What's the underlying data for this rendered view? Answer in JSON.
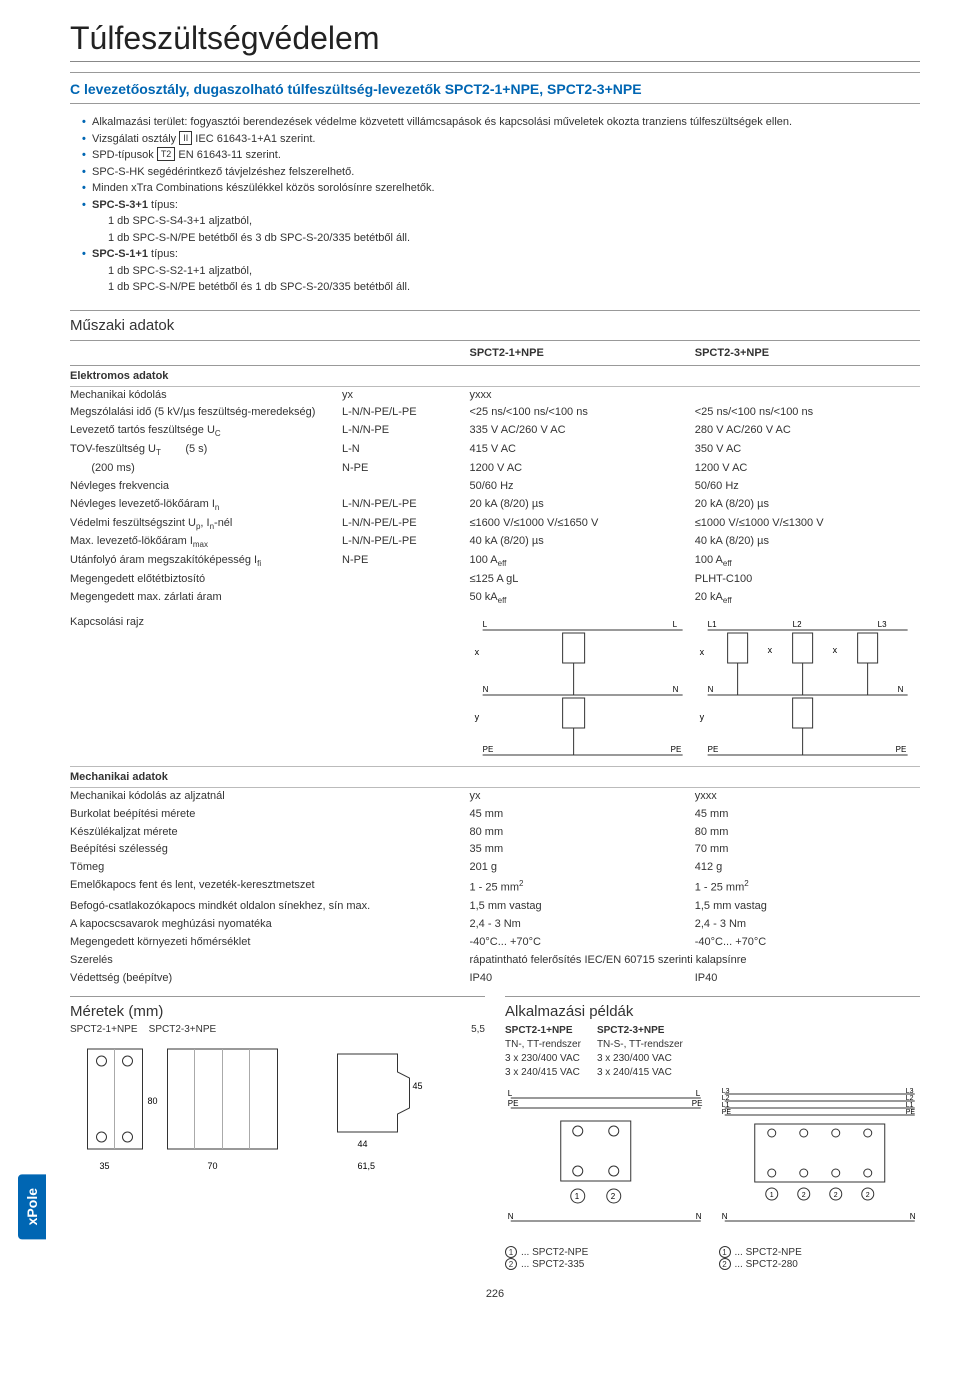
{
  "page": {
    "title": "Túlfeszültségvédelem",
    "number": "226",
    "sidebar": "xPole"
  },
  "product": {
    "heading": "C levezetőosztály, dugaszolható túlfeszültség-levezetők SPCT2-1+NPE, SPCT2-3+NPE"
  },
  "bullets": [
    {
      "text": "Alkalmazási terület: fogyasztói berendezések védelme közvetett villámcsapások és kapcsolási műveletek okozta tranziens túlfeszültségek ellen."
    },
    {
      "text": "Vizsgálati osztály",
      "box": "II",
      "suffix": "IEC 61643-1+A1 szerint."
    },
    {
      "text": "SPD-típusok",
      "box": "T2",
      "suffix": "EN 61643-11 szerint."
    },
    {
      "text": "SPC-S-HK segédérintkező távjelzéshez felszerelhető."
    },
    {
      "text": "Minden xTra Combinations készülékkel közös sorolósínre szerelhetők."
    },
    {
      "boldlead": "SPC-S-3+1",
      "text": "típus:"
    },
    {
      "sub": true,
      "text": "1 db SPC-S-S4-3+1 aljzatból,"
    },
    {
      "sub": true,
      "text": "1 db SPC-S-N/PE betétből és 3 db SPC-S-20/335 betétből áll."
    },
    {
      "boldlead": "SPC-S-1+1",
      "text": "típus:"
    },
    {
      "sub": true,
      "text": "1 db SPC-S-S2-1+1 aljzatból,"
    },
    {
      "sub": true,
      "text": "1 db SPC-S-N/PE betétből és 1 db SPC-S-20/335 betétből áll."
    }
  ],
  "tech": {
    "title": "Műszaki adatok",
    "columns": [
      "",
      "SPCT2-1+NPE",
      "SPCT2-3+NPE"
    ],
    "elec_heading": "Elektromos adatok",
    "rows": [
      {
        "label": "Mechanikai kódolás",
        "cond": "",
        "cond2": "yx",
        "v1": "yxxx",
        "v2": "",
        "spanmode": "coded"
      },
      {
        "label": "Megszólalási idő (5 kV/µs feszültség-meredekség)",
        "cond": "L-N/N-PE/L-PE",
        "v1": "<25 ns/<100 ns/<100 ns",
        "v2": "<25 ns/<100 ns/<100 ns"
      },
      {
        "label": "Levezető tartós feszültsége U",
        "sub": "C",
        "cond": "L-N/N-PE",
        "v1": "335 V AC/260 V AC",
        "v2": "280 V AC/260 V AC"
      },
      {
        "label": "TOV-feszültség U",
        "sub": "T",
        "extra": "(5 s)",
        "cond": "L-N",
        "v1": "415 V AC",
        "v2": "350 V AC"
      },
      {
        "label": "",
        "extra": "(200 ms)",
        "cond": "N-PE",
        "v1": "1200 V AC",
        "v2": "1200 V AC"
      },
      {
        "label": "Névleges frekvencia",
        "cond": "",
        "v1": "50/60 Hz",
        "v2": "50/60 Hz"
      },
      {
        "label": "Névleges levezető-lökőáram I",
        "sub": "n",
        "cond": "L-N/N-PE/L-PE",
        "v1": "20 kA (8/20) µs",
        "v2": "20 kA (8/20) µs"
      },
      {
        "label": "Védelmi feszültségszint U",
        "sub": "p",
        "extra2": ", I",
        "sub2": "n",
        "extra3": "-nél",
        "cond": "L-N/N-PE/L-PE",
        "v1": "≤1600 V/≤1000 V/≤1650 V",
        "v2": "≤1000 V/≤1000 V/≤1300 V"
      },
      {
        "label": "Max. levezető-lökőáram I",
        "sub": "max",
        "cond": "L-N/N-PE/L-PE",
        "v1": "40 kA (8/20) µs",
        "v2": "40 kA (8/20) µs"
      },
      {
        "label": "Utánfolyó áram megszakítóképesség I",
        "sub": "fi",
        "cond": "N-PE",
        "v1": "100 A",
        "v1sub": "eff",
        "v2": "100 A",
        "v2sub": "eff"
      },
      {
        "label": "Megengedett előtétbiztosító",
        "cond": "",
        "v1": "≤125 A gL",
        "v2": "PLHT-C100"
      },
      {
        "label": "Megengedett max. zárlati áram",
        "cond": "",
        "v1": "50 kA",
        "v1sub": "eff",
        "v2": "20 kA",
        "v2sub": "eff"
      }
    ],
    "circuit_label": "Kapcsolási rajz",
    "circuit_terms": {
      "L": "L",
      "L1": "L1",
      "L2": "L2",
      "L3": "L3",
      "N": "N",
      "PE": "PE",
      "x": "x",
      "y": "y"
    },
    "mech_heading": "Mechanikai adatok",
    "mech_rows": [
      {
        "label": "Mechanikai kódolás az aljzatnál",
        "v1": "yx",
        "v2": "yxxx"
      },
      {
        "label": "Burkolat beépítési mérete",
        "v1": "45 mm",
        "v2": "45 mm"
      },
      {
        "label": "Készülékaljzat mérete",
        "v1": "80 mm",
        "v2": "80 mm"
      },
      {
        "label": "Beépítési szélesség",
        "v1": "35 mm",
        "v2": "70 mm"
      },
      {
        "label": "Tömeg",
        "v1": "201 g",
        "v2": "412 g"
      },
      {
        "label": "Emelőkapocs fent és lent, vezeték-keresztmetszet",
        "v1": "1 - 25 mm",
        "v1sup": "2",
        "v2": "1 - 25 mm",
        "v2sup": "2"
      },
      {
        "label": "Befogó-csatlakozókapocs mindkét oldalon sínekhez, sín max.",
        "v1": "1,5 mm vastag",
        "v2": "1,5 mm vastag"
      },
      {
        "label": "A kapocscsavarok meghúzási nyomatéka",
        "v1": "2,4 - 3 Nm",
        "v2": "2,4 - 3 Nm"
      },
      {
        "label": "Megengedett környezeti hőmérséklet",
        "v1": "-40°C... +70°C",
        "v2": "-40°C... +70°C"
      },
      {
        "label": "Szerelés",
        "v1span": "rápatintható felerősítés IEC/EN 60715 szerinti kalapsínre"
      },
      {
        "label": "Védettség (beépítve)",
        "v1": "IP40",
        "v2": "IP40"
      }
    ]
  },
  "dims": {
    "title": "Méretek (mm)",
    "left": "SPCT2-1+NPE",
    "right": "SPCT2-3+NPE",
    "values": {
      "h": "80",
      "w1": "35",
      "w2": "70",
      "side_top": "5,5",
      "prof_h": "45",
      "prof_w": "44",
      "prof_d": "61,5"
    }
  },
  "apps": {
    "title": "Alkalmazási példák",
    "left": {
      "name": "SPCT2-1+NPE",
      "l1": "TN-, TT-rendszer",
      "l2": "3 x 230/400 VAC",
      "l3": "3 x 240/415 VAC"
    },
    "right": {
      "name": "SPCT2-3+NPE",
      "l1": "TN-S-, TT-rendszer",
      "l2": "3 x 230/400 VAC",
      "l3": "3 x 240/415 VAC"
    },
    "rails": {
      "L": "L",
      "L1": "L1",
      "L2": "L2",
      "L3": "L3",
      "PE": "PE",
      "N": "N"
    },
    "legend_left": [
      "... SPCT2-NPE",
      "... SPCT2-335"
    ],
    "legend_right": [
      "... SPCT2-NPE",
      "... SPCT2-280"
    ]
  },
  "colors": {
    "brand_blue": "#0066b3",
    "rule_gray": "#999999",
    "text": "#333333"
  }
}
